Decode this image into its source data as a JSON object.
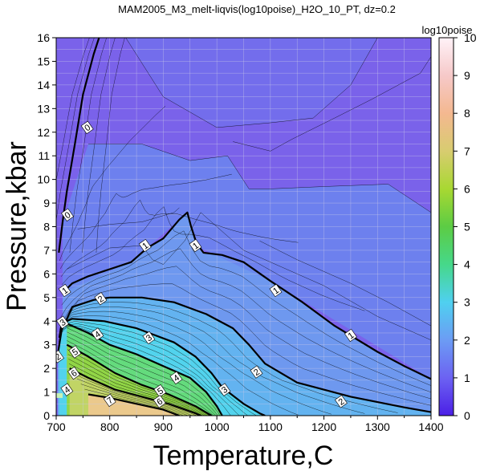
{
  "title": "MAM2005_M3_melt-liqvis(log10poise)_H2O_10_PT, dz=0.2",
  "chart_data": {
    "type": "heatmap",
    "title": "MAM2005_M3_melt-liqvis(log10poise)_H2O_10_PT, dz=0.2",
    "xlabel": "Temperature,C",
    "ylabel": "Pressure,kbar",
    "xlim": [
      700,
      1400
    ],
    "ylim": [
      0,
      16
    ],
    "xticks": [
      "700",
      "800",
      "900",
      "1000",
      "1100",
      "1200",
      "1300",
      "1400"
    ],
    "yticks": [
      "0",
      "1",
      "2",
      "3",
      "4",
      "5",
      "6",
      "7",
      "8",
      "9",
      "10",
      "11",
      "12",
      "13",
      "14",
      "15",
      "16"
    ],
    "grid": true,
    "colorbar": {
      "label": "log10poise",
      "range": [
        0,
        10
      ],
      "ticks": [
        "0",
        "1",
        "2",
        "3",
        "4",
        "5",
        "6",
        "7",
        "8",
        "9",
        "10"
      ]
    },
    "contour_interval": 0.2,
    "labeled_contours": [
      {
        "level": 0,
        "label": "0",
        "points": [
          [
            705,
            6.9
          ],
          [
            712,
            8.2
          ],
          [
            720,
            9.5
          ],
          [
            735,
            11.5
          ],
          [
            750,
            13.6
          ],
          [
            770,
            15.3
          ],
          [
            780,
            16
          ]
        ],
        "label_at": [
          [
            758,
            12.2
          ],
          [
            721,
            8.5
          ]
        ]
      },
      {
        "level": 1,
        "label": "1",
        "points": [
          [
            712,
            5.2
          ],
          [
            730,
            5.6
          ],
          [
            760,
            5.9
          ],
          [
            800,
            6.2
          ],
          [
            840,
            6.5
          ],
          [
            870,
            7.1
          ],
          [
            900,
            7.5
          ],
          [
            930,
            8.3
          ],
          [
            945,
            8.6
          ],
          [
            952,
            8.0
          ],
          [
            962,
            7.3
          ],
          [
            975,
            6.9
          ],
          [
            1010,
            6.8
          ],
          [
            1050,
            6.5
          ],
          [
            1100,
            5.7
          ],
          [
            1160,
            4.8
          ],
          [
            1220,
            3.8
          ],
          [
            1300,
            2.7
          ],
          [
            1350,
            2.1
          ],
          [
            1400,
            1.55
          ]
        ],
        "label_at": [
          [
            716,
            5.3
          ],
          [
            866,
            7.2
          ],
          [
            960,
            7.2
          ],
          [
            1110,
            5.3
          ],
          [
            1250,
            3.4
          ]
        ]
      },
      {
        "level": 2,
        "label": "2",
        "points": [
          [
            703,
            2.6
          ],
          [
            710,
            3.6
          ],
          [
            730,
            4.6
          ],
          [
            770,
            4.9
          ],
          [
            800,
            5.0
          ],
          [
            860,
            5.0
          ],
          [
            920,
            4.8
          ],
          [
            980,
            4.3
          ],
          [
            1030,
            3.7
          ],
          [
            1060,
            3.0
          ],
          [
            1090,
            2.2
          ],
          [
            1150,
            1.4
          ],
          [
            1250,
            0.8
          ],
          [
            1350,
            0.35
          ],
          [
            1400,
            0.15
          ]
        ],
        "label_at": [
          [
            783,
            4.95
          ],
          [
            1074,
            1.85
          ],
          [
            1232,
            0.6
          ],
          [
            703,
            2.5
          ]
        ]
      },
      {
        "level": 3,
        "label": "3",
        "points": [
          [
            706,
            3.3
          ],
          [
            710,
            3.9
          ],
          [
            730,
            4.1
          ],
          [
            790,
            4.0
          ],
          [
            850,
            3.7
          ],
          [
            920,
            3.1
          ],
          [
            960,
            2.5
          ],
          [
            990,
            1.8
          ],
          [
            1010,
            1.2
          ],
          [
            1050,
            0.5
          ],
          [
            1080,
            0.1
          ],
          [
            1090,
            0
          ]
        ],
        "label_at": [
          [
            712,
            3.95
          ],
          [
            873,
            3.3
          ],
          [
            1014,
            1.1
          ]
        ]
      },
      {
        "level": 4,
        "label": "4",
        "points": [
          [
            720,
            3.9
          ],
          [
            760,
            3.5
          ],
          [
            800,
            3.0
          ],
          [
            850,
            2.6
          ],
          [
            900,
            2.1
          ],
          [
            950,
            1.6
          ],
          [
            980,
            1.0
          ],
          [
            1000,
            0.4
          ],
          [
            1010,
            0
          ]
        ],
        "label_at": [
          [
            777,
            3.45
          ],
          [
            924,
            1.6
          ],
          [
            720,
            1.1
          ]
        ]
      },
      {
        "level": 5,
        "label": "5",
        "points": [
          [
            720,
            3.0
          ],
          [
            760,
            2.5
          ],
          [
            810,
            1.8
          ],
          [
            860,
            1.3
          ],
          [
            910,
            0.9
          ],
          [
            960,
            0.4
          ],
          [
            990,
            0
          ]
        ],
        "label_at": [
          [
            735,
            2.7
          ],
          [
            894,
            1.05
          ]
        ]
      },
      {
        "level": 6,
        "label": "6",
        "points": [
          [
            725,
            2.0
          ],
          [
            760,
            1.6
          ],
          [
            810,
            1.1
          ],
          [
            860,
            0.8
          ],
          [
            910,
            0.5
          ],
          [
            960,
            0.1
          ],
          [
            970,
            0
          ]
        ],
        "label_at": [
          [
            733,
            1.8
          ],
          [
            893,
            0.6
          ]
        ]
      },
      {
        "level": 7,
        "label": "7",
        "points": [
          [
            760,
            0.9
          ],
          [
            800,
            0.75
          ],
          [
            850,
            0.5
          ],
          [
            900,
            0.25
          ],
          [
            930,
            0
          ]
        ],
        "label_at": [
          [
            800,
            0.65
          ]
        ]
      }
    ]
  },
  "colors": {
    "low": "#6f4fe0",
    "mid1": "#6aa0f0",
    "mid2": "#44ccc8",
    "mid3": "#4ec96a",
    "mid4": "#9bd93e",
    "mid5": "#f0c880",
    "high": "#fde8f0",
    "contour": "#000000",
    "grid": "#d8d8f0"
  }
}
